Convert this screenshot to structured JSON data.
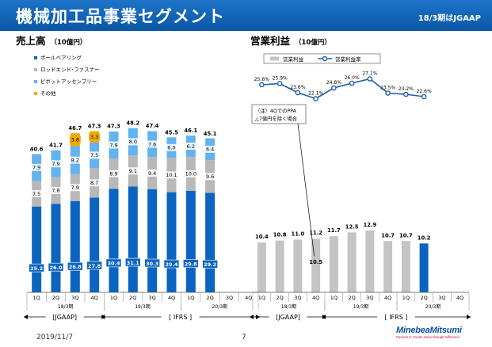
{
  "header": {
    "title": "機械加工品事業セグメント",
    "tag": "18/3期はJGAAP"
  },
  "footer": {
    "date": "2019/11/7",
    "page": "7"
  },
  "logo": {
    "name": "MinebeaMitsumi",
    "tagline": "Passion to Create Value through Difference"
  },
  "colors": {
    "header_bg": "#0a56a6",
    "ball": "#0b64c0",
    "rod": "#b8b8b8",
    "pivot": "#62b3ef",
    "other": "#f2a900",
    "op_profit": "#c4c4c4",
    "op_profit_highlight": "#0b64c0",
    "margin_line": "#1c5fa8"
  },
  "chart_data": [
    {
      "type": "bar",
      "stacked": true,
      "title": "売上高",
      "unit": "（10億円）",
      "categories": [
        "1Q",
        "2Q",
        "3Q",
        "4Q",
        "1Q",
        "2Q",
        "3Q",
        "4Q",
        "1Q",
        "2Q",
        "3Q",
        "4Q"
      ],
      "years": [
        {
          "label": "18/3期",
          "from": 0,
          "to": 3
        },
        {
          "label": "19/3期",
          "from": 4,
          "to": 7
        },
        {
          "label": "20/3期",
          "from": 8,
          "to": 11
        }
      ],
      "standards": [
        {
          "label": "[JGAAP]",
          "from": 0,
          "to": 3
        },
        {
          "label": "[ IFRS ]",
          "from": 4,
          "to": 11
        }
      ],
      "series": [
        {
          "name": "ボールベアリング",
          "color": "#0b64c0",
          "label_style": "box",
          "values": [
            25.2,
            26.0,
            26.8,
            27.8,
            30.4,
            31.1,
            30.3,
            29.4,
            29.8,
            29.2,
            null,
            null
          ]
        },
        {
          "name": "ロッドエンド･ファスナー",
          "color": "#b8b8b8",
          "label_style": "plain",
          "values": [
            7.5,
            7.8,
            7.9,
            8.7,
            8.9,
            9.1,
            9.4,
            10.1,
            10.0,
            9.6,
            null,
            null
          ]
        },
        {
          "name": "ピボットアッセンブリー",
          "color": "#62b3ef",
          "label_style": "plain",
          "values": [
            7.9,
            7.9,
            8.2,
            7.5,
            7.9,
            8.0,
            7.6,
            6.0,
            6.2,
            6.4,
            null,
            null
          ]
        },
        {
          "name": "その他",
          "color": "#f2a900",
          "label_style": "plain",
          "values": [
            null,
            null,
            3.8,
            3.3,
            null,
            null,
            null,
            null,
            null,
            null,
            null,
            null
          ]
        }
      ],
      "totals": [
        40.6,
        41.7,
        46.7,
        47.3,
        47.3,
        48.2,
        47.4,
        45.5,
        46.1,
        45.1,
        null,
        null
      ],
      "ylim": [
        0,
        50
      ]
    },
    {
      "type": "bar+line",
      "title": "営業利益",
      "unit": "（10億円）",
      "legend": {
        "bar_label": "営業利益",
        "line_label": "営業利益率"
      },
      "categories": [
        "1Q",
        "2Q",
        "3Q",
        "4Q",
        "1Q",
        "2Q",
        "3Q",
        "4Q",
        "1Q",
        "2Q",
        "3Q",
        "4Q"
      ],
      "years": [
        {
          "label": "18/3期",
          "from": 0,
          "to": 3
        },
        {
          "label": "19/3期",
          "from": 4,
          "to": 7
        },
        {
          "label": "20/3期",
          "from": 8,
          "to": 11
        }
      ],
      "standards": [
        {
          "label": "[JGAAP]",
          "from": 0,
          "to": 3
        },
        {
          "label": "[ IFRS ]",
          "from": 4,
          "to": 11
        }
      ],
      "bar_values": [
        10.4,
        10.8,
        11.0,
        11.2,
        11.7,
        12.5,
        12.9,
        10.7,
        10.7,
        10.2,
        null,
        null
      ],
      "bar_highlight_index": 9,
      "alt_label": {
        "index": 3,
        "value": "10.5"
      },
      "margin_values": [
        25.6,
        25.9,
        23.6,
        22.1,
        24.8,
        26.0,
        27.1,
        23.5,
        23.2,
        22.6,
        null,
        null
      ],
      "margin_labels": [
        "25.6%",
        "25.9%",
        "23.6%",
        "22.1%",
        "24.8%",
        "26.0%",
        "27.1%",
        "23.5%",
        "23.2%",
        "22.6%",
        null,
        null
      ],
      "annotation": {
        "line1": "（注）4QでのPPA",
        "line2": "△7億円を除く場合"
      },
      "ylim": [
        0,
        50
      ],
      "margin_ylim": [
        14,
        28
      ]
    }
  ]
}
